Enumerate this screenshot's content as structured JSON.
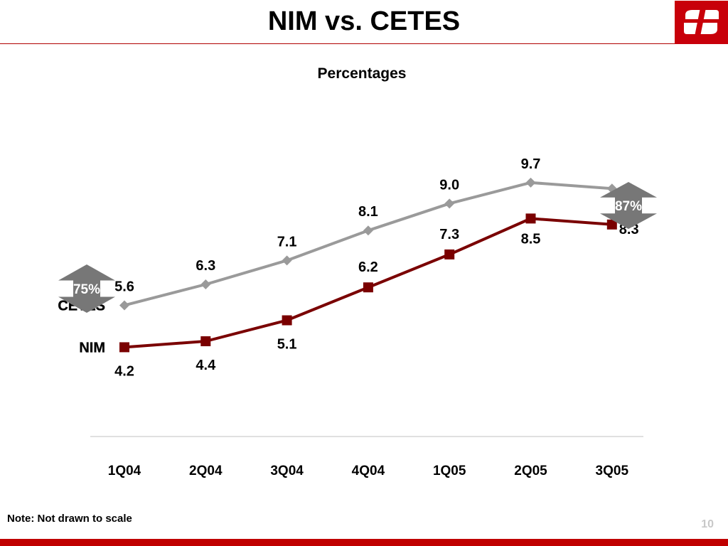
{
  "header": {
    "title": "NIM vs. CETES"
  },
  "footer": {
    "note": "Note: Not drawn to scale",
    "page_number": "10"
  },
  "chart_data": {
    "type": "line",
    "title": "",
    "subtitle": "Percentages",
    "categories": [
      "1Q04",
      "2Q04",
      "3Q04",
      "4Q04",
      "1Q05",
      "2Q05",
      "3Q05"
    ],
    "series": [
      {
        "name": "CETES",
        "values": [
          5.6,
          6.3,
          7.1,
          8.1,
          9.0,
          9.7,
          9.5
        ],
        "color": "#9a9a9a",
        "marker": "diamond"
      },
      {
        "name": "NIM",
        "values": [
          4.2,
          4.4,
          5.1,
          6.2,
          7.3,
          8.5,
          8.3
        ],
        "color": "#7a0000",
        "marker": "square"
      }
    ],
    "annotations": [
      {
        "text": "75%",
        "position": "left"
      },
      {
        "text": "87%",
        "position": "right"
      }
    ],
    "ylim": [
      2.5,
      12
    ],
    "grid": false,
    "legend": "direct-labels-left",
    "colors": {
      "arrow": "#777777",
      "baseline": "#d6d6d6"
    }
  }
}
